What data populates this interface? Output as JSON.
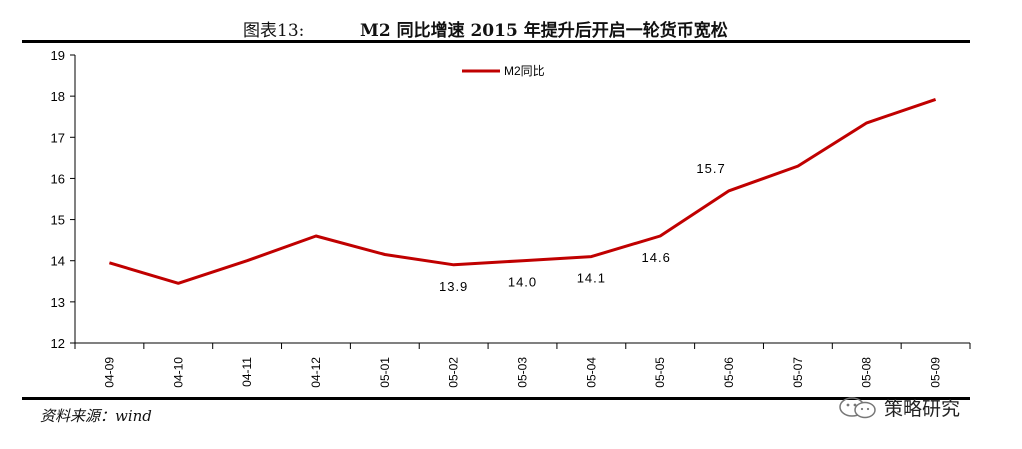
{
  "header": {
    "figure_label": "图表13:",
    "title": "M2 同比增速 2015 年提升后开启一轮货币宽松"
  },
  "footer": {
    "source": "资料来源：wind",
    "watermark": "策略研究"
  },
  "chart_data": {
    "type": "line",
    "categories": [
      "04-09",
      "04-10",
      "04-11",
      "04-12",
      "05-01",
      "05-02",
      "05-03",
      "05-04",
      "05-05",
      "05-06",
      "05-07",
      "05-08",
      "05-09"
    ],
    "series": [
      {
        "name": "M2同比",
        "color": "#c00000",
        "values": [
          13.95,
          13.45,
          14.0,
          14.6,
          14.15,
          13.9,
          14.0,
          14.1,
          14.6,
          15.7,
          16.3,
          17.35,
          17.92
        ]
      }
    ],
    "data_labels": [
      {
        "index": 5,
        "text": "13.9"
      },
      {
        "index": 6,
        "text": "14.0"
      },
      {
        "index": 7,
        "text": "14.1"
      },
      {
        "index": 8,
        "text": "14.6"
      },
      {
        "index": 9,
        "text": "15.7"
      }
    ],
    "yticks": [
      12,
      13,
      14,
      15,
      16,
      17,
      18,
      19
    ],
    "ylim": [
      12,
      19
    ],
    "legend": "top-center",
    "grid": false,
    "title": "",
    "xlabel": "",
    "ylabel": ""
  }
}
